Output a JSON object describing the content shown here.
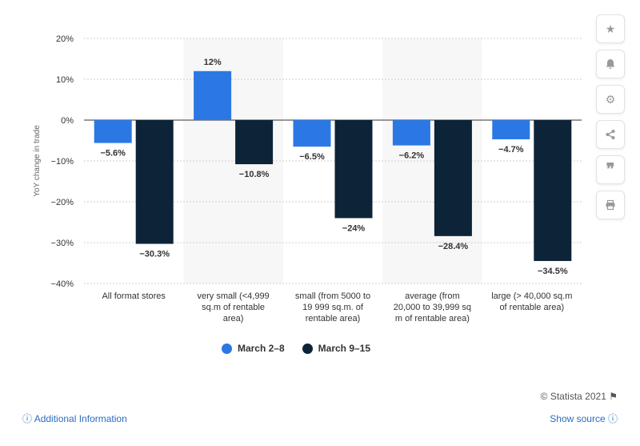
{
  "chart_data": {
    "type": "bar",
    "categories": [
      "All format stores",
      "very small (<4,999 sq.m of rentable area)",
      "small (from 5000 to 19 999 sq.m. of rentable area)",
      "average (from 20,000 to 39,999 sq m of rentable area)",
      "large (> 40,000 sq.m of rentable area)"
    ],
    "series": [
      {
        "name": "March 2-8",
        "color": "#2b78e4",
        "values": [
          -5.6,
          12,
          -6.5,
          -6.2,
          -4.7
        ],
        "labels": [
          "−5.6%",
          "12%",
          "−6.5%",
          "−6.2%",
          "−4.7%"
        ]
      },
      {
        "name": "March 9-15",
        "color": "#0d2338",
        "values": [
          -30.3,
          -10.8,
          -24,
          -28.4,
          -34.5
        ],
        "labels": [
          "−30.3%",
          "−10.8%",
          "−24%",
          "−28.4%",
          "−34.5%"
        ]
      }
    ],
    "ylabel": "YoY change in trade",
    "ylim": [
      -40,
      20
    ],
    "yticks": [
      20,
      10,
      0,
      -10,
      -20,
      -30,
      -40
    ],
    "ytick_labels": [
      "20%",
      "10%",
      "0%",
      "−10%",
      "−20%",
      "−30%",
      "−40%"
    ],
    "grid": true,
    "legend_position": "bottom"
  },
  "legend": {
    "items": [
      "March 2–8",
      "March 9–15"
    ]
  },
  "xlabels": [
    [
      "All format stores"
    ],
    [
      "very small (<4,999",
      "sq.m of rentable",
      "area)"
    ],
    [
      "small (from 5000 to",
      "19 999 sq.m. of",
      "rentable area)"
    ],
    [
      "average (from",
      "20,000 to 39,999 sq",
      "m of rentable area)"
    ],
    [
      "large (> 40,000 sq.m",
      "of rentable area)"
    ]
  ],
  "footer": {
    "credit": "© Statista 2021",
    "additional_info": "Additional Information",
    "show_source": "Show source"
  },
  "sidebar": {
    "icons": [
      "star-icon",
      "bell-icon",
      "gear-icon",
      "share-icon",
      "quote-icon",
      "print-icon"
    ]
  }
}
